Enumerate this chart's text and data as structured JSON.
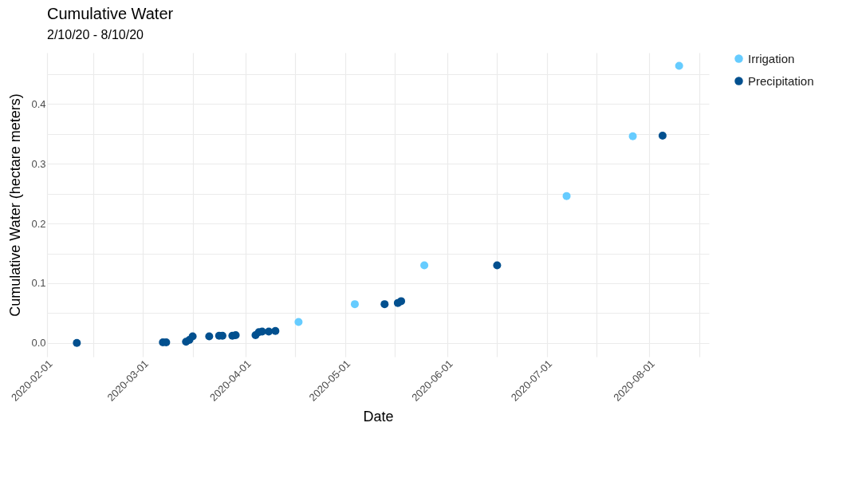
{
  "chart_data": {
    "type": "scatter",
    "title": "Cumulative Water",
    "subtitle": "2/10/20 - 8/10/20",
    "xlabel": "Date",
    "ylabel": "Cumulative Water (hectare meters)",
    "xlim": [
      "2020-02-01",
      "2020-08-19"
    ],
    "xticks": [
      "2020-02-01",
      {
        "value": "2020-02-15",
        "label": null
      },
      "2020-03-01",
      {
        "value": "2020-03-16",
        "label": null
      },
      "2020-04-01",
      {
        "value": "2020-04-16",
        "label": null
      },
      "2020-05-01",
      {
        "value": "2020-05-16",
        "label": null
      },
      "2020-06-01",
      {
        "value": "2020-06-16",
        "label": null
      },
      "2020-07-01",
      {
        "value": "2020-07-16",
        "label": null
      },
      "2020-08-01",
      {
        "value": "2020-08-16",
        "label": null
      }
    ],
    "ylim": [
      -0.023,
      0.486
    ],
    "yticks": [
      {
        "value": 0,
        "label": "0.0"
      },
      {
        "value": 0.05,
        "label": null
      },
      {
        "value": 0.1,
        "label": "0.1"
      },
      {
        "value": 0.15,
        "label": null
      },
      {
        "value": 0.2,
        "label": "0.2"
      },
      {
        "value": 0.25,
        "label": null
      },
      {
        "value": 0.3,
        "label": "0.3"
      },
      {
        "value": 0.35,
        "label": null
      },
      {
        "value": 0.4,
        "label": "0.4"
      },
      {
        "value": 0.45,
        "label": null
      }
    ],
    "grid": true,
    "legend": "right",
    "marker": "circle",
    "series": [
      {
        "name": "Irrigation",
        "color": "#66ccff",
        "x": [
          "2020-04-17",
          "2020-05-04",
          "2020-05-25",
          "2020-07-07",
          "2020-07-27",
          "2020-08-10"
        ],
        "values": [
          0.035,
          0.065,
          0.13,
          0.246,
          0.346,
          0.464
        ]
      },
      {
        "name": "Precipitation",
        "color": "#02508f",
        "x": [
          "2020-02-10",
          "2020-03-07",
          "2020-03-08",
          "2020-03-14",
          "2020-03-15",
          "2020-03-16",
          "2020-03-21",
          "2020-03-24",
          "2020-03-25",
          "2020-03-28",
          "2020-03-29",
          "2020-04-04",
          "2020-04-05",
          "2020-04-06",
          "2020-04-08",
          "2020-04-10",
          "2020-05-13",
          "2020-05-17",
          "2020-05-18",
          "2020-06-16",
          "2020-08-05"
        ],
        "values": [
          0,
          0.001,
          0.001,
          0.002,
          0.005,
          0.011,
          0.011,
          0.012,
          0.012,
          0.012,
          0.013,
          0.013,
          0.018,
          0.019,
          0.019,
          0.02,
          0.065,
          0.067,
          0.07,
          0.13,
          0.347
        ]
      }
    ]
  }
}
